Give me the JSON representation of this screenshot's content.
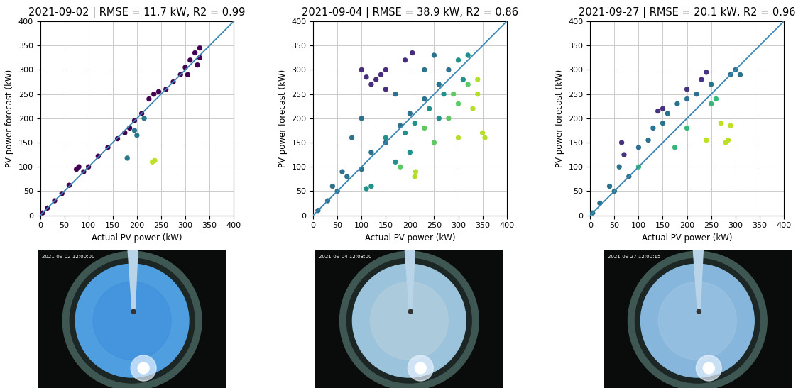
{
  "chart_data": [
    {
      "type": "scatter",
      "title": "2021-09-02 | RMSE = 11.7 kW, R2 = 0.99",
      "x_label": "Actual PV power (kW)",
      "y_label": "PV power forecast (kW)",
      "xlim": [
        0,
        400
      ],
      "ylim": [
        0,
        400
      ],
      "xticks": [
        0,
        50,
        100,
        150,
        200,
        250,
        300,
        350,
        400
      ],
      "yticks": [
        0,
        50,
        100,
        150,
        200,
        250,
        300,
        350,
        400
      ],
      "grid": true,
      "image_timestamp": "2021-09-02 12:00:00",
      "series": [
        {
          "color": "#440154",
          "x": [
            5,
            15,
            30,
            45,
            60,
            75,
            80,
            90,
            100,
            120,
            140,
            160,
            175,
            185,
            195,
            210,
            225,
            235,
            245,
            260,
            275,
            290,
            300,
            310,
            320,
            330,
            330,
            325,
            305
          ],
          "values": [
            5,
            15,
            30,
            45,
            62,
            95,
            100,
            90,
            100,
            122,
            140,
            158,
            170,
            180,
            195,
            210,
            240,
            250,
            255,
            260,
            275,
            290,
            305,
            320,
            335,
            345,
            325,
            310,
            290
          ]
        },
        {
          "color": "#2a788e",
          "x": [
            180,
            200,
            195,
            215
          ],
          "values": [
            118,
            165,
            175,
            200
          ]
        },
        {
          "color": "#bddf26",
          "x": [
            232,
            237
          ],
          "values": [
            110,
            113
          ]
        }
      ]
    },
    {
      "type": "scatter",
      "title": "2021-09-04 | RMSE = 38.9 kW, R2 = 0.86",
      "x_label": "Actual PV power (kW)",
      "y_label": "PV power forecast (kW)",
      "xlim": [
        0,
        400
      ],
      "ylim": [
        0,
        400
      ],
      "xticks": [
        0,
        50,
        100,
        150,
        200,
        250,
        300,
        350,
        400
      ],
      "yticks": [
        0,
        50,
        100,
        150,
        200,
        250,
        300,
        350,
        400
      ],
      "grid": true,
      "image_timestamp": "2021-09-04 12:08:00",
      "series": [
        {
          "color": "#472d7b",
          "x": [
            100,
            110,
            130,
            150,
            150,
            205,
            190,
            120,
            140
          ],
          "values": [
            300,
            285,
            280,
            300,
            260,
            335,
            320,
            270,
            290
          ]
        },
        {
          "color": "#2c728e",
          "x": [
            10,
            30,
            50,
            70,
            100,
            120,
            150,
            180,
            200,
            230,
            250,
            230,
            100,
            80,
            60,
            40,
            260,
            280,
            170
          ],
          "values": [
            10,
            30,
            50,
            80,
            95,
            130,
            150,
            185,
            210,
            240,
            330,
            300,
            200,
            160,
            90,
            60,
            270,
            300,
            250
          ]
        },
        {
          "color": "#21918c",
          "x": [
            300,
            320,
            270,
            240,
            210,
            190,
            150,
            170,
            120,
            110,
            200,
            260,
            310
          ],
          "values": [
            320,
            330,
            250,
            220,
            190,
            170,
            160,
            110,
            60,
            55,
            130,
            200,
            280
          ]
        },
        {
          "color": "#5ec962",
          "x": [
            280,
            250,
            300,
            320,
            180,
            230,
            290
          ],
          "values": [
            200,
            150,
            230,
            270,
            100,
            180,
            250
          ]
        },
        {
          "color": "#b5de2b",
          "x": [
            340,
            330,
            300,
            350,
            355,
            210,
            212,
            340
          ],
          "values": [
            250,
            220,
            160,
            170,
            160,
            80,
            90,
            280
          ]
        }
      ]
    },
    {
      "type": "scatter",
      "title": "2021-09-27 | RMSE = 20.1 kW, R2 = 0.96",
      "x_label": "Actual PV power (kW)",
      "y_label": "PV power forecast (kW)",
      "xlim": [
        0,
        400
      ],
      "ylim": [
        0,
        400
      ],
      "xticks": [
        0,
        50,
        100,
        150,
        200,
        250,
        300,
        350,
        400
      ],
      "yticks": [
        0,
        50,
        100,
        150,
        200,
        250,
        300,
        350,
        400
      ],
      "grid": true,
      "image_timestamp": "2021-09-27 12:00:15",
      "series": [
        {
          "color": "#46327e",
          "x": [
            65,
            70,
            150,
            140,
            240,
            230,
            200
          ],
          "values": [
            150,
            125,
            220,
            215,
            295,
            280,
            260
          ]
        },
        {
          "color": "#2c728e",
          "x": [
            5,
            20,
            40,
            60,
            100,
            120,
            130,
            150,
            160,
            180,
            200,
            220,
            250,
            290,
            300,
            310,
            50,
            80
          ],
          "values": [
            5,
            25,
            60,
            100,
            140,
            155,
            180,
            190,
            210,
            230,
            240,
            250,
            270,
            290,
            300,
            290,
            50,
            80
          ]
        },
        {
          "color": "#35b779",
          "x": [
            260,
            200,
            175,
            100,
            250
          ],
          "values": [
            240,
            180,
            140,
            100,
            230
          ]
        },
        {
          "color": "#bddf26",
          "x": [
            270,
            280,
            285,
            290,
            240
          ],
          "values": [
            190,
            150,
            155,
            185,
            155
          ]
        }
      ]
    }
  ]
}
